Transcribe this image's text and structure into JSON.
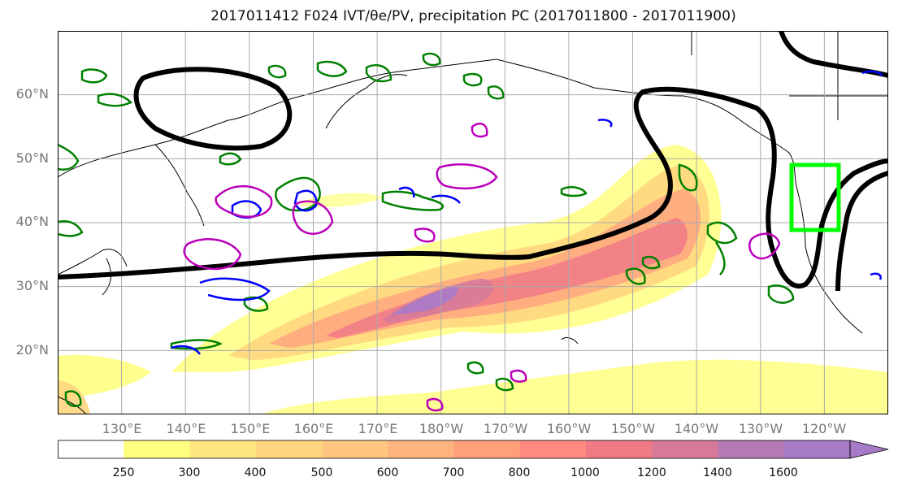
{
  "title_text": "2017011412 F024 IVT/θe/PV, precipitation PC (2017011800 - 2017011900)",
  "map": {
    "lat_labels": [
      "60°N",
      "50°N",
      "40°N",
      "30°N",
      "20°N"
    ],
    "lat_values": [
      60,
      50,
      40,
      30,
      20
    ],
    "lon_labels": [
      "130°E",
      "140°E",
      "150°E",
      "160°E",
      "170°E",
      "180°W",
      "170°W",
      "160°W",
      "150°W",
      "140°W",
      "130°W",
      "120°W"
    ],
    "lon_values": [
      130,
      140,
      150,
      160,
      170,
      180,
      190,
      200,
      210,
      220,
      230,
      240
    ],
    "extent": {
      "lon_min": 120,
      "lon_max": 250,
      "lat_min": 10,
      "lat_max": 70
    },
    "grid": true,
    "box_color": "#00ff00"
  },
  "colorbar": {
    "tick_labels": [
      "250",
      "300",
      "400",
      "500",
      "600",
      "700",
      "800",
      "1000",
      "1200",
      "1400",
      "1600"
    ],
    "colors": [
      "#ffffff",
      "#ffff80",
      "#ffe680",
      "#ffd680",
      "#ffc680",
      "#ffb480",
      "#ffa07a",
      "#ff8a80",
      "#f07a86",
      "#d77a9a",
      "#b47ab6",
      "#a77ac8"
    ],
    "extend": "max"
  },
  "contour_colors": {
    "theta_e": "#000000",
    "pv_green": "#008000",
    "pv_blue": "#0000ff",
    "pv_magenta": "#bb00bb"
  }
}
